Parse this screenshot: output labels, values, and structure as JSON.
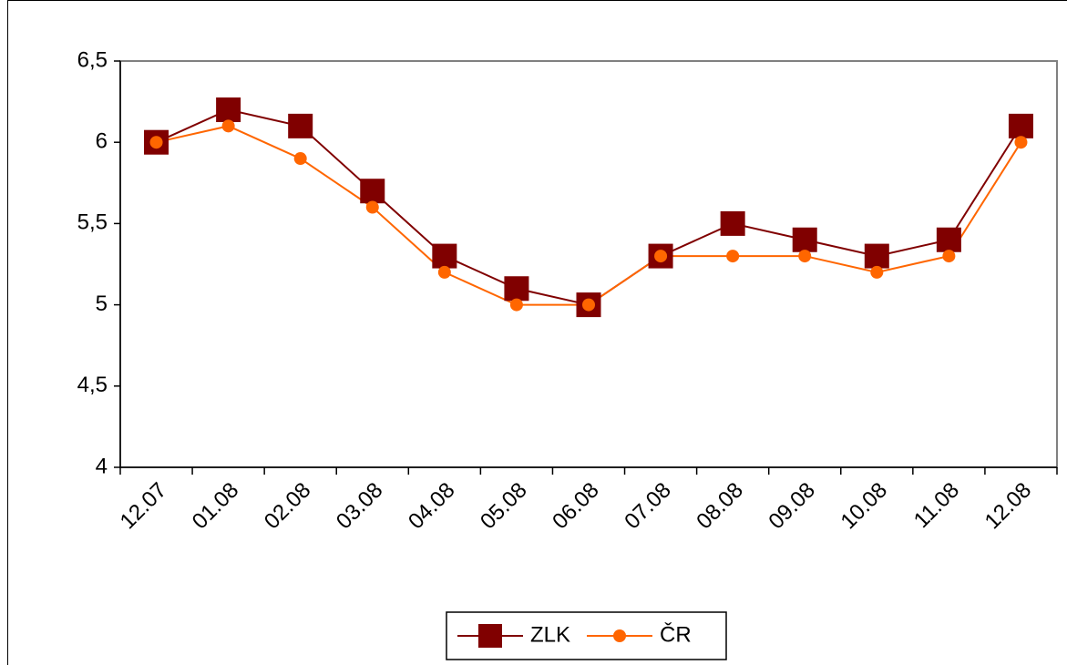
{
  "chart_data": {
    "type": "line",
    "categories": [
      "12.07",
      "01.08",
      "02.08",
      "03.08",
      "04.08",
      "05.08",
      "06.08",
      "07.08",
      "08.08",
      "09.08",
      "10.08",
      "11.08",
      "12.08"
    ],
    "series": [
      {
        "name": "ZLK",
        "color": "#800000",
        "marker": "square",
        "values": [
          6.0,
          6.2,
          6.1,
          5.7,
          5.3,
          5.1,
          5.0,
          5.3,
          5.5,
          5.4,
          5.3,
          5.4,
          6.1
        ]
      },
      {
        "name": "ČR",
        "color": "#ff6600",
        "marker": "circle",
        "values": [
          6.0,
          6.1,
          5.9,
          5.6,
          5.2,
          5.0,
          5.0,
          5.3,
          5.3,
          5.3,
          5.2,
          5.3,
          6.0
        ]
      }
    ],
    "ylim": [
      4,
      6.5
    ],
    "yticks": [
      4,
      {
        "value": 4.5,
        "label": "4,5"
      },
      5,
      {
        "value": 5.5,
        "label": "5,5"
      },
      6,
      {
        "value": 6.5,
        "label": "6,5"
      }
    ],
    "grid": false,
    "legend": "bottom"
  }
}
